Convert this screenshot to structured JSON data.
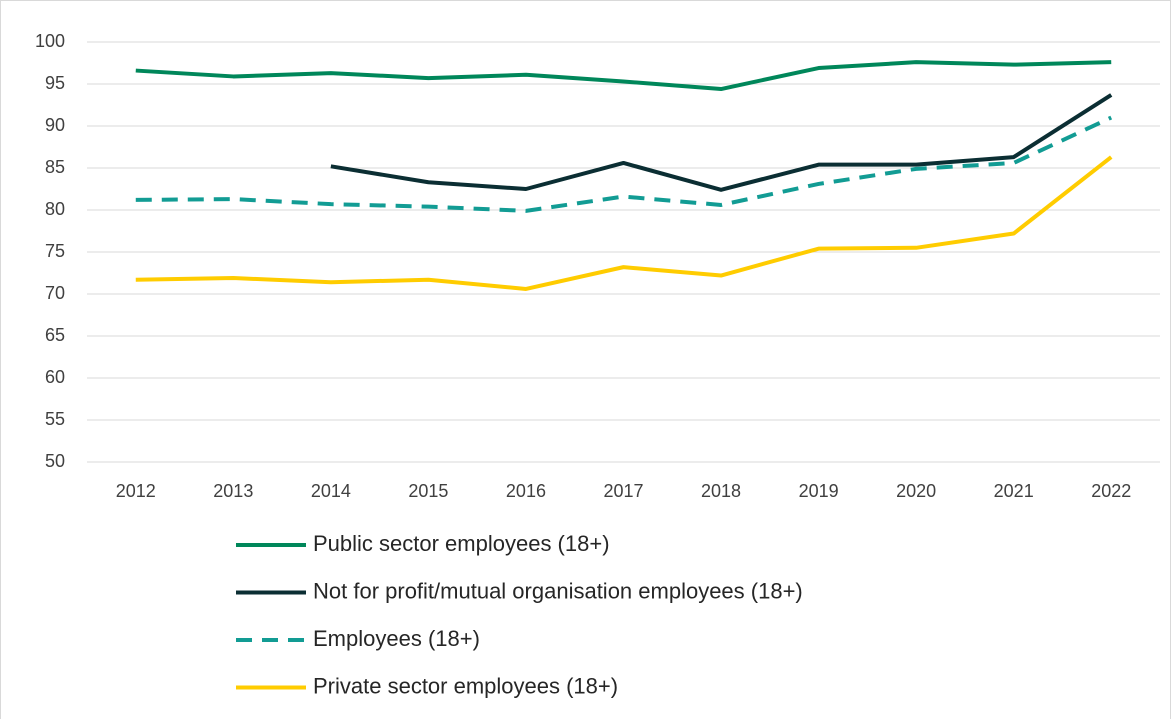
{
  "chart_data": {
    "type": "line",
    "x": [
      2012,
      2013,
      2014,
      2015,
      2016,
      2017,
      2018,
      2019,
      2020,
      2021,
      2022
    ],
    "series": [
      {
        "name": "Public sector employees (18+)",
        "color": "#00875a",
        "dash": false,
        "values": [
          96.6,
          95.9,
          96.3,
          95.7,
          96.1,
          95.3,
          94.4,
          96.9,
          97.6,
          97.3,
          97.6
        ]
      },
      {
        "name": "Not for profit/mutual organisation employees (18+)",
        "color": "#0b2e33",
        "dash": false,
        "values": [
          null,
          null,
          85.2,
          83.3,
          82.5,
          85.6,
          82.4,
          85.4,
          85.4,
          86.3,
          93.7
        ]
      },
      {
        "name": "Employees (18+)",
        "color": "#129c94",
        "dash": true,
        "values": [
          81.2,
          81.3,
          80.7,
          80.4,
          79.9,
          81.6,
          80.6,
          83.1,
          84.9,
          85.6,
          91.0
        ]
      },
      {
        "name": "Private sector employees (18+)",
        "color": "#ffcc00",
        "dash": false,
        "values": [
          71.7,
          71.9,
          71.4,
          71.7,
          70.6,
          73.2,
          72.2,
          75.4,
          75.5,
          77.2,
          86.3
        ]
      }
    ],
    "xlim": [
      2011.5,
      2022.5
    ],
    "ylim": [
      50,
      100
    ],
    "yticks": [
      50,
      55,
      60,
      65,
      70,
      75,
      80,
      85,
      90,
      95,
      100
    ],
    "grid": true,
    "legend": "bottom"
  }
}
